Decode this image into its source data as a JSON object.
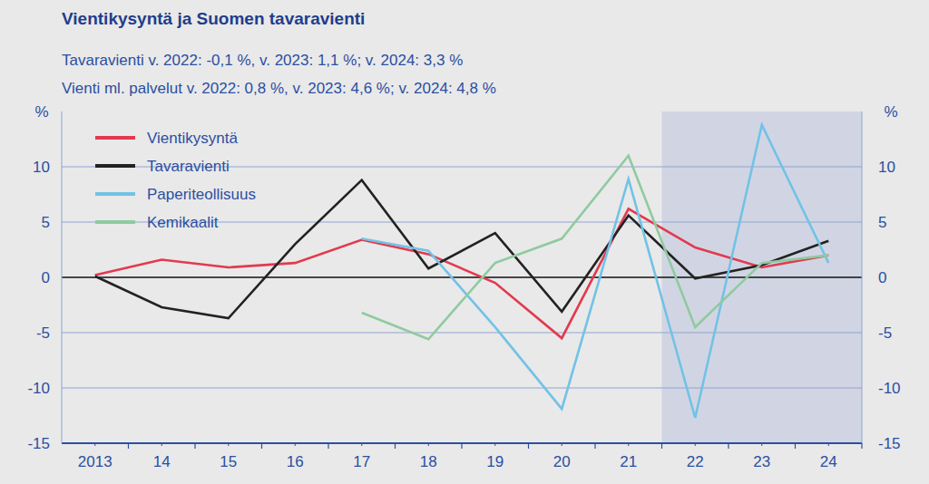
{
  "chart_data": {
    "type": "line",
    "title": "Vientikysyntä ja Suomen tavaravienti",
    "subtitle": [
      "Tavaravienti v. 2022: -0,1 %, v. 2023: 1,1 %; v. 2024: 3,3 %",
      "Vienti ml. palvelut v. 2022: 0,8 %, v. 2023: 4,6 %; v. 2024: 4,8 %"
    ],
    "ylabel": "%",
    "categories": [
      "2013",
      "14",
      "15",
      "16",
      "17",
      "18",
      "19",
      "20",
      "21",
      "22",
      "23",
      "24"
    ],
    "series": [
      {
        "name": "Vientikysyntä",
        "color": "#e23a4e",
        "values": [
          0.2,
          1.6,
          0.9,
          1.3,
          3.4,
          2.1,
          -0.5,
          -5.5,
          6.2,
          2.7,
          0.9,
          2.0
        ]
      },
      {
        "name": "Tavaravienti",
        "color": "#222222",
        "values": [
          0.1,
          -2.7,
          -3.7,
          3.0,
          8.8,
          0.8,
          4.0,
          -3.1,
          5.6,
          -0.1,
          1.1,
          3.3
        ]
      },
      {
        "name": "Paperiteollisuus",
        "color": "#72c2e6",
        "values": [
          null,
          null,
          null,
          null,
          3.5,
          2.4,
          -4.5,
          -11.9,
          8.9,
          -12.7,
          13.8,
          1.3
        ]
      },
      {
        "name": "Kemikaalit",
        "color": "#8fcaa0",
        "values": [
          null,
          null,
          null,
          null,
          -3.2,
          -5.6,
          1.3,
          3.5,
          11.0,
          -4.5,
          1.3,
          2.0
        ]
      }
    ],
    "highlight": {
      "start": "22",
      "end": "24"
    },
    "ylim": [
      -15,
      15
    ],
    "yticks": [
      -15,
      -10,
      -5,
      0,
      5,
      10
    ],
    "grid": true,
    "legend": "top-left"
  }
}
